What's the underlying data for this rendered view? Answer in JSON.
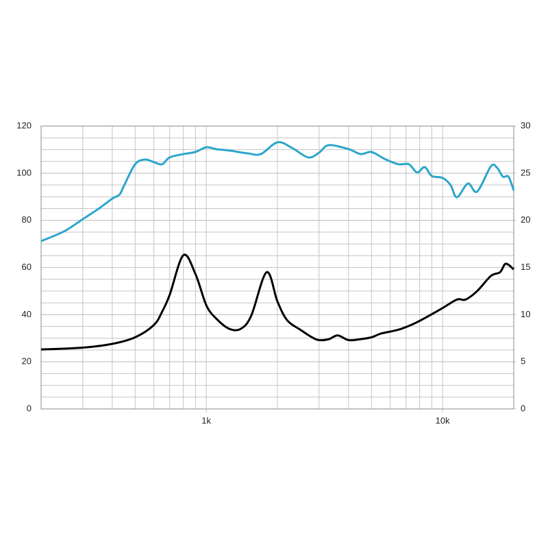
{
  "chart_data": {
    "type": "line",
    "xscale": "log",
    "xlim": [
      200,
      20000
    ],
    "xticks": [
      {
        "value": 1000,
        "label": "1k"
      },
      {
        "value": 10000,
        "label": "10k"
      }
    ],
    "xgrid": [
      200,
      300,
      400,
      500,
      600,
      700,
      800,
      900,
      1000,
      2000,
      3000,
      4000,
      5000,
      6000,
      7000,
      8000,
      9000,
      10000,
      20000
    ],
    "ylim": [
      0,
      120
    ],
    "yticks": [
      0,
      20,
      40,
      60,
      80,
      100,
      120
    ],
    "yminor_step": 5,
    "y2lim": [
      0,
      30
    ],
    "y2ticks": [
      0,
      5,
      10,
      15,
      20,
      25,
      30
    ],
    "grid": true,
    "series": [
      {
        "color": "#2ba6cb",
        "axis": "y",
        "x": [
          200,
          250,
          300,
          350,
          400,
          430,
          450,
          500,
          550,
          600,
          650,
          700,
          800,
          900,
          1000,
          1100,
          1250,
          1500,
          1700,
          2000,
          2300,
          2700,
          3000,
          3300,
          4000,
          4500,
          5000,
          5700,
          6500,
          7200,
          7800,
          8400,
          9000,
          10000,
          10800,
          11500,
          12800,
          14000,
          16000,
          17000,
          18000,
          19000,
          20000
        ],
        "values": [
          71.2,
          75.3,
          80.5,
          84.9,
          89.2,
          91,
          95,
          103.8,
          105.8,
          104.7,
          103.8,
          106.7,
          108.1,
          109,
          111,
          110.2,
          109.6,
          108.4,
          108.1,
          113.1,
          110.8,
          106.7,
          108.7,
          111.9,
          110.2,
          108.1,
          109,
          106,
          103.8,
          103.8,
          100.3,
          102.6,
          98.8,
          98,
          95,
          89.8,
          95.6,
          92.2,
          102.9,
          102.3,
          98.5,
          98.5,
          92.7
        ]
      },
      {
        "color": "#000000",
        "axis": "y2",
        "x": [
          200,
          300,
          400,
          500,
          600,
          650,
          700,
          800,
          900,
          1000,
          1100,
          1250,
          1400,
          1550,
          1800,
          2000,
          2200,
          2500,
          2800,
          3000,
          3300,
          3600,
          4000,
          4500,
          5000,
          5500,
          6500,
          7500,
          8500,
          10000,
          11500,
          12500,
          14000,
          16000,
          17500,
          18500,
          20000
        ],
        "values": [
          6.3,
          6.5,
          6.9,
          7.6,
          8.9,
          10.3,
          12.1,
          16.3,
          14.3,
          11,
          9.6,
          8.5,
          8.5,
          9.9,
          14.5,
          11.4,
          9.4,
          8.4,
          7.6,
          7.3,
          7.4,
          7.8,
          7.3,
          7.4,
          7.6,
          8,
          8.4,
          9,
          9.7,
          10.7,
          11.6,
          11.6,
          12.5,
          14.1,
          14.5,
          15.4,
          14.8
        ]
      }
    ]
  }
}
